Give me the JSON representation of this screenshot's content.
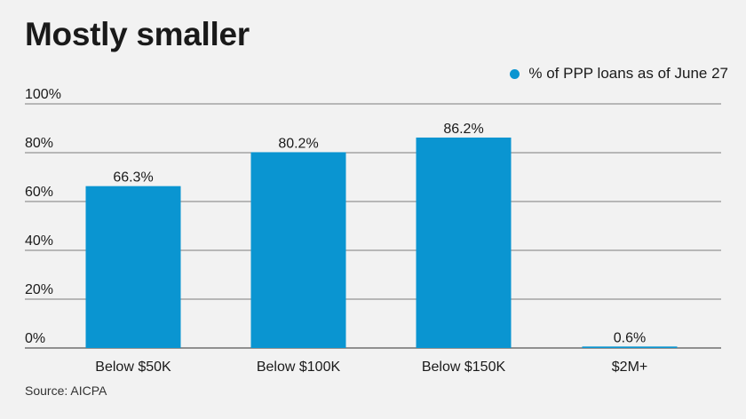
{
  "title": "Mostly smaller",
  "source": "Source: AICPA",
  "colors": {
    "bar": "#0a95d1",
    "grid": "#555555",
    "text": "#1a1a1a"
  },
  "chart_data": {
    "type": "bar",
    "categories": [
      "Below $50K",
      "Below $100K",
      "Below $150K",
      "$2M+"
    ],
    "series": [
      {
        "name": "% of PPP loans as of June 27",
        "values": [
          66.3,
          80.2,
          86.2,
          0.6
        ]
      }
    ],
    "value_labels": [
      "66.3%",
      "80.2%",
      "86.2%",
      "0.6%"
    ],
    "y_ticks": [
      0,
      20,
      40,
      60,
      80,
      100
    ],
    "y_tick_labels": [
      "0%",
      "20%",
      "40%",
      "60%",
      "80%",
      "100%"
    ],
    "ylim": [
      0,
      100
    ],
    "grid": true,
    "legend_position": "top-right",
    "xlabel": "",
    "ylabel": ""
  }
}
